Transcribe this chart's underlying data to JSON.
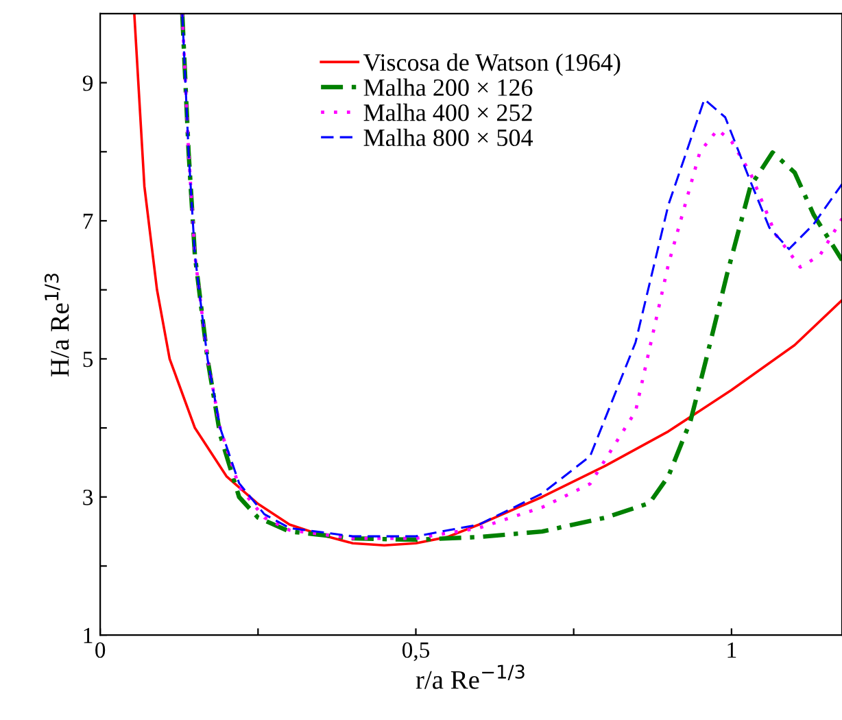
{
  "chart_data": {
    "type": "line",
    "xlabel": "r/a Re$^{−1/3}$",
    "ylabel": "H/a Re$^{1/3}$",
    "xlim": [
      0,
      1.175
    ],
    "ylim": [
      1,
      10
    ],
    "xticks": [
      0,
      {
        "value": 0.25,
        "label": null
      },
      {
        "value": 0.5,
        "label": "0,5"
      },
      {
        "value": 0.75,
        "label": null
      },
      1
    ],
    "yticks": [
      1,
      {
        "value": 2,
        "label": null
      },
      3,
      {
        "value": 4,
        "label": null
      },
      5,
      {
        "value": 6,
        "label": null
      },
      7,
      {
        "value": 8,
        "label": null
      },
      9
    ],
    "legend": "top",
    "grid": false,
    "series": [
      {
        "name": "Viscosa de Watson (1964)",
        "color": "#ff0000",
        "line_style": "solid",
        "x": [
          0.054,
          0.07,
          0.09,
          0.11,
          0.15,
          0.2,
          0.25,
          0.3,
          0.35,
          0.4,
          0.45,
          0.5,
          0.55,
          0.6,
          0.7,
          0.8,
          0.9,
          1.0,
          1.1,
          1.175
        ],
        "values": [
          10,
          7.5,
          6,
          5.0,
          4.0,
          3.3,
          2.9,
          2.6,
          2.45,
          2.33,
          2.3,
          2.33,
          2.42,
          2.6,
          3.0,
          3.45,
          3.95,
          4.55,
          5.2,
          5.85
        ]
      },
      {
        "name": "Malha 200 × 126",
        "color": "#008000",
        "line_style": "dashdot",
        "x": [
          0.13,
          0.14,
          0.15,
          0.17,
          0.19,
          0.22,
          0.25,
          0.3,
          0.4,
          0.5,
          0.6,
          0.7,
          0.8,
          0.87,
          0.9,
          0.935,
          0.96,
          0.993,
          1.03,
          1.065,
          1.1,
          1.13,
          1.175
        ],
        "values": [
          10,
          8,
          6.5,
          5,
          3.9,
          3.0,
          2.7,
          2.5,
          2.4,
          2.38,
          2.42,
          2.5,
          2.7,
          2.91,
          3.3,
          4.1,
          5.0,
          6.23,
          7.5,
          7.99,
          7.7,
          7.09,
          6.43
        ]
      },
      {
        "name": "Malha 400 × 252",
        "color": "#ff00ff",
        "line_style": "dotted",
        "x": [
          0.13,
          0.14,
          0.15,
          0.17,
          0.19,
          0.22,
          0.26,
          0.3,
          0.4,
          0.5,
          0.6,
          0.7,
          0.776,
          0.848,
          0.9,
          0.95,
          0.978,
          1.0,
          1.03,
          1.07,
          1.109,
          1.14,
          1.175
        ],
        "values": [
          10,
          8,
          6.5,
          5,
          4,
          3.15,
          2.7,
          2.52,
          2.4,
          2.4,
          2.55,
          2.85,
          3.19,
          4.24,
          6.37,
          8.0,
          8.32,
          8.15,
          7.69,
          6.8,
          6.33,
          6.5,
          7.03
        ]
      },
      {
        "name": "Malha 800 × 504",
        "color": "#0000ff",
        "line_style": "dashed",
        "x": [
          0.13,
          0.14,
          0.15,
          0.17,
          0.19,
          0.22,
          0.26,
          0.3,
          0.4,
          0.5,
          0.6,
          0.7,
          0.776,
          0.848,
          0.9,
          0.957,
          0.99,
          1.03,
          1.06,
          1.091,
          1.13,
          1.175
        ],
        "values": [
          10,
          8,
          6.5,
          5,
          4,
          3.2,
          2.75,
          2.55,
          2.43,
          2.43,
          2.6,
          3.05,
          3.59,
          5.24,
          7.23,
          8.76,
          8.5,
          7.57,
          6.9,
          6.59,
          6.95,
          7.53
        ]
      }
    ]
  }
}
